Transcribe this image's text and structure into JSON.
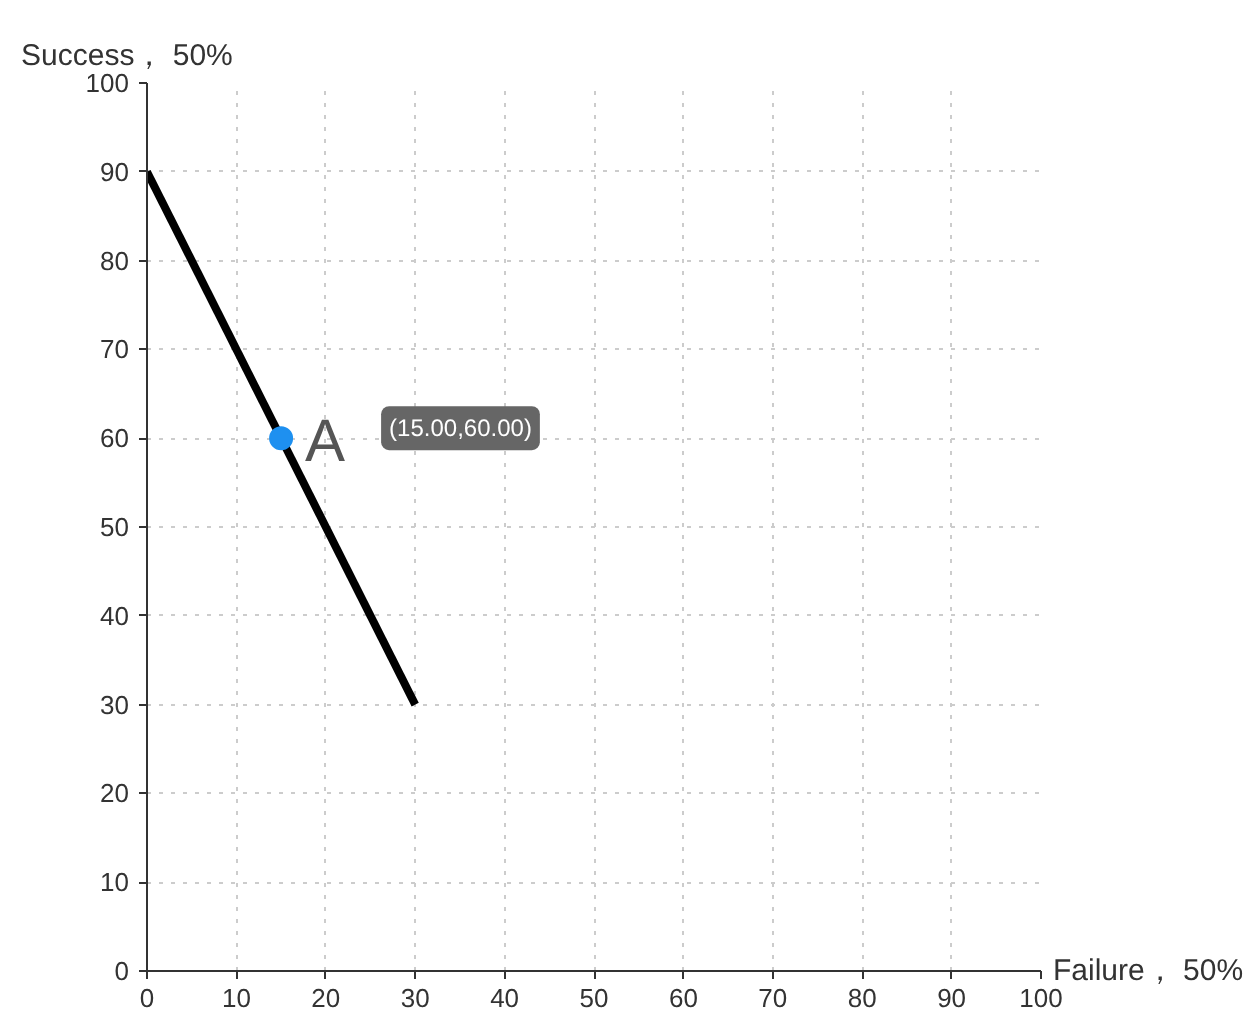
{
  "chart_data": {
    "type": "line",
    "xlabel": "Failure， 50%",
    "ylabel": "Success， 50%",
    "xlim": [
      0,
      100
    ],
    "ylim": [
      0,
      100
    ],
    "xticks": [
      0,
      10,
      20,
      30,
      40,
      50,
      60,
      70,
      80,
      90,
      100
    ],
    "yticks": [
      0,
      10,
      20,
      30,
      40,
      50,
      60,
      70,
      80,
      90,
      100
    ],
    "grid": true,
    "annotations": [
      "(15.00,60.00)"
    ],
    "series": [
      {
        "color": "#000000",
        "x": [
          0,
          30
        ],
        "values": [
          90,
          30
        ],
        "line_style": "solid",
        "marker": "none"
      },
      {
        "type": "scatter",
        "name": "A",
        "color": "#1e90f0",
        "x": [
          15
        ],
        "values": [
          60
        ],
        "marker": "circle"
      }
    ]
  }
}
